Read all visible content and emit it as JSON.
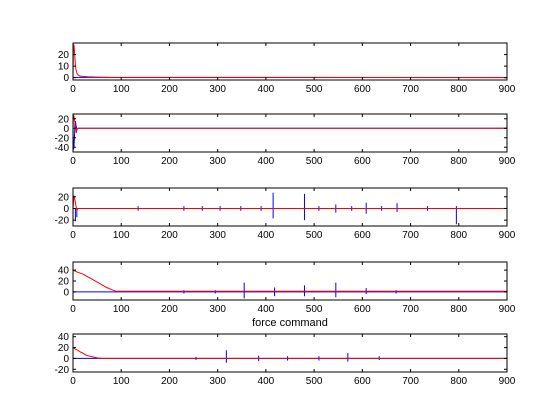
{
  "figure": {
    "background": "#ffffff",
    "axes_color": "#000000"
  },
  "chart_data": [
    {
      "type": "line",
      "title": "",
      "xlabel": "",
      "ylabel": "",
      "xlim": [
        0,
        900
      ],
      "ylim": [
        -2,
        30
      ],
      "xticks": [
        0,
        100,
        200,
        300,
        400,
        500,
        600,
        700,
        800,
        900
      ],
      "yticks": [
        0,
        10,
        20
      ],
      "grid": false,
      "series": [
        {
          "color": "#ff0000",
          "x": [
            0,
            1,
            2,
            3,
            4,
            5,
            6,
            8,
            10,
            14,
            20,
            30,
            50,
            80,
            900
          ],
          "y": [
            0,
            29,
            28,
            23,
            17,
            11,
            7,
            4,
            2.5,
            1.6,
            1.1,
            0.8,
            0.5,
            0.3,
            0.1
          ]
        },
        {
          "color": "#0000ff",
          "x": [
            0,
            100,
            200,
            300,
            400,
            500,
            600,
            700,
            800,
            900
          ],
          "y": [
            0.3,
            0.2,
            0.2,
            0.2,
            0.2,
            0.2,
            0.2,
            0.2,
            0.2,
            0.2
          ]
        }
      ]
    },
    {
      "type": "line",
      "title": "",
      "xlabel": "",
      "ylabel": "",
      "xlim": [
        0,
        900
      ],
      "ylim": [
        -50,
        30
      ],
      "xticks": [
        0,
        100,
        200,
        300,
        400,
        500,
        600,
        700,
        800,
        900
      ],
      "yticks": [
        -40,
        -20,
        0,
        20
      ],
      "grid": false,
      "series": [
        {
          "color": "#ff0000",
          "x": [
            0,
            1,
            2,
            3,
            4,
            5,
            6,
            7,
            8,
            10,
            900
          ],
          "y": [
            0,
            28,
            25,
            18,
            12,
            5,
            -5,
            -10,
            -3,
            0,
            0
          ]
        },
        {
          "color": "#0000ff",
          "x": [
            0,
            1,
            2,
            3,
            4,
            5,
            6,
            7,
            8,
            10,
            20,
            900
          ],
          "y": [
            0,
            -45,
            -38,
            -20,
            10,
            15,
            8,
            2,
            -2,
            0,
            0,
            0
          ]
        }
      ]
    },
    {
      "type": "line",
      "title": "",
      "xlabel": "",
      "ylabel": "",
      "xlim": [
        0,
        900
      ],
      "ylim": [
        -30,
        35
      ],
      "xticks": [
        0,
        100,
        200,
        300,
        400,
        500,
        600,
        700,
        800,
        900
      ],
      "yticks": [
        -20,
        0,
        20
      ],
      "grid": false,
      "series": [
        {
          "color": "#ff0000",
          "x": [
            0,
            2,
            4,
            6,
            8,
            10,
            15,
            900
          ],
          "y": [
            0,
            22,
            15,
            5,
            -3,
            0,
            0,
            0
          ]
        },
        {
          "color": "#0000ff",
          "x": [
            0,
            100,
            200,
            300,
            400,
            500,
            600,
            700,
            800,
            900
          ],
          "y": [
            0,
            0,
            0,
            0,
            0,
            0,
            0,
            0,
            0,
            0
          ]
        }
      ],
      "spikes": {
        "color": "#0000ff",
        "x": [
          5,
          8,
          135,
          230,
          268,
          305,
          348,
          390,
          415,
          480,
          510,
          545,
          578,
          608,
          640,
          672,
          735,
          795
        ],
        "top": [
          0,
          0,
          4,
          4,
          4,
          4,
          4,
          4,
          27,
          25,
          4,
          7,
          4,
          10,
          4,
          9,
          4,
          4
        ],
        "bottom": [
          -22,
          -15,
          -4,
          -4,
          -4,
          -4,
          -4,
          -4,
          -17,
          -20,
          -4,
          -7,
          -4,
          -9,
          -4,
          -6,
          -4,
          -27
        ]
      }
    },
    {
      "type": "line",
      "title": "",
      "xlabel": "force command",
      "ylabel": "",
      "xlim": [
        0,
        900
      ],
      "ylim": [
        -15,
        55
      ],
      "xticks": [
        0,
        100,
        200,
        300,
        400,
        500,
        600,
        700,
        800,
        900
      ],
      "yticks": [
        0,
        20,
        40
      ],
      "grid": false,
      "series": [
        {
          "color": "#ff0000",
          "x": [
            0,
            5,
            10,
            20,
            30,
            40,
            50,
            60,
            70,
            80,
            90,
            900
          ],
          "y": [
            40,
            38,
            36,
            33,
            28,
            23,
            18,
            13,
            8,
            4,
            1,
            1
          ]
        },
        {
          "color": "#0000ff",
          "x": [
            0,
            100,
            200,
            300,
            400,
            500,
            600,
            700,
            800,
            900
          ],
          "y": [
            0,
            0,
            0,
            0,
            0,
            0,
            0,
            0,
            0,
            0
          ]
        }
      ],
      "spikes": {
        "color": "#0000ff",
        "x": [
          230,
          295,
          355,
          418,
          480,
          545,
          608,
          670
        ],
        "top": [
          3,
          3,
          17,
          8,
          12,
          17,
          7,
          3
        ],
        "bottom": [
          -3,
          -3,
          -12,
          -8,
          -8,
          -10,
          -4,
          -3
        ]
      }
    },
    {
      "type": "line",
      "title": "",
      "xlabel": "",
      "ylabel": "",
      "xlim": [
        0,
        900
      ],
      "ylim": [
        -25,
        45
      ],
      "xticks": [
        0,
        100,
        200,
        300,
        400,
        500,
        600,
        700,
        800,
        900
      ],
      "yticks": [
        -20,
        0,
        20,
        40
      ],
      "grid": false,
      "series": [
        {
          "color": "#ff0000",
          "x": [
            0,
            5,
            10,
            15,
            20,
            25,
            30,
            40,
            50,
            60,
            900
          ],
          "y": [
            20,
            17,
            15,
            12,
            10,
            7,
            5,
            3,
            1,
            0,
            0
          ]
        },
        {
          "color": "#0000ff",
          "x": [
            0,
            100,
            200,
            300,
            400,
            500,
            600,
            700,
            800,
            900
          ],
          "y": [
            0,
            0,
            0,
            0,
            0,
            0,
            0,
            0,
            0,
            0
          ]
        }
      ],
      "spikes": {
        "color": "#0000ff",
        "x": [
          255,
          318,
          385,
          445,
          510,
          570,
          635
        ],
        "top": [
          3,
          15,
          5,
          4,
          4,
          10,
          4
        ],
        "bottom": [
          -3,
          -8,
          -5,
          -4,
          -4,
          -6,
          -3
        ]
      }
    }
  ]
}
